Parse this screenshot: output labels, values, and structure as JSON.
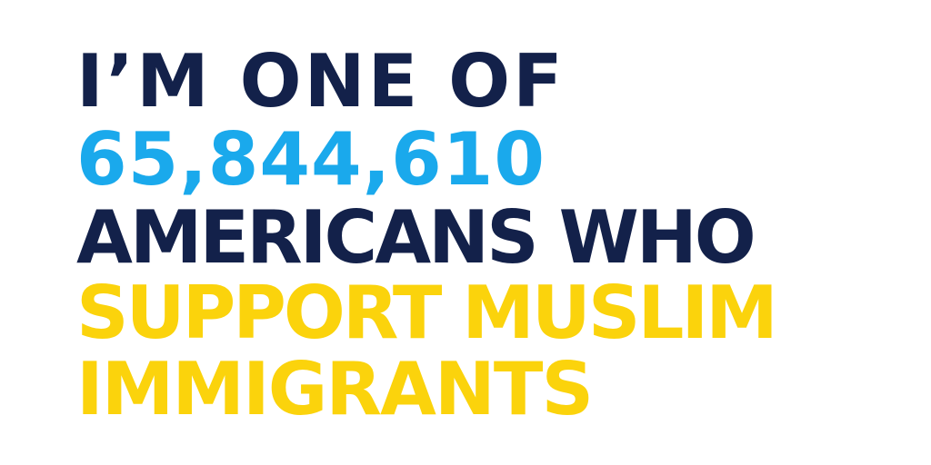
{
  "headline": {
    "line1": "I’M ONE OF",
    "line2": "65,844,610",
    "line3": "AMERICANS WHO",
    "line4": "SUPPORT MUSLIM",
    "line5": "IMMIGRANTS"
  },
  "colors": {
    "background": "#ffffff",
    "navy": "#13214a",
    "sky_blue": "#1aa9ec",
    "yellow": "#fbd30c"
  }
}
